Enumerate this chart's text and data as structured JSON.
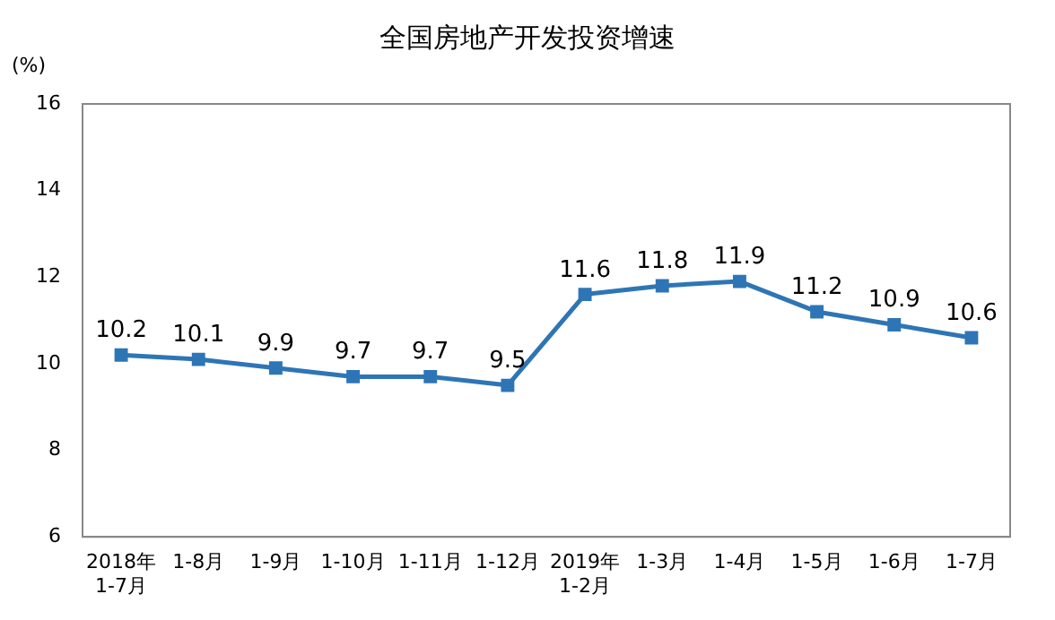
{
  "chart_data": {
    "type": "line",
    "title": "全国房地产开发投资增速",
    "ylabel": "(%)",
    "categories": [
      "2018年\n1-7月",
      "1-8月",
      "1-9月",
      "1-10月",
      "1-11月",
      "1-12月",
      "2019年\n1-2月",
      "1-3月",
      "1-4月",
      "1-5月",
      "1-6月",
      "1-7月"
    ],
    "series": [
      {
        "color": "#2e75b6",
        "values": [
          10.2,
          10.1,
          9.9,
          9.7,
          9.7,
          9.5,
          11.6,
          11.8,
          11.9,
          11.2,
          10.9,
          10.6
        ]
      }
    ],
    "ylim": [
      6,
      16
    ],
    "yticks": [
      6,
      8,
      10,
      12,
      14,
      16
    ],
    "grid": false,
    "legend": false,
    "marker": "square",
    "line_style": "solid",
    "data_labels": true
  }
}
